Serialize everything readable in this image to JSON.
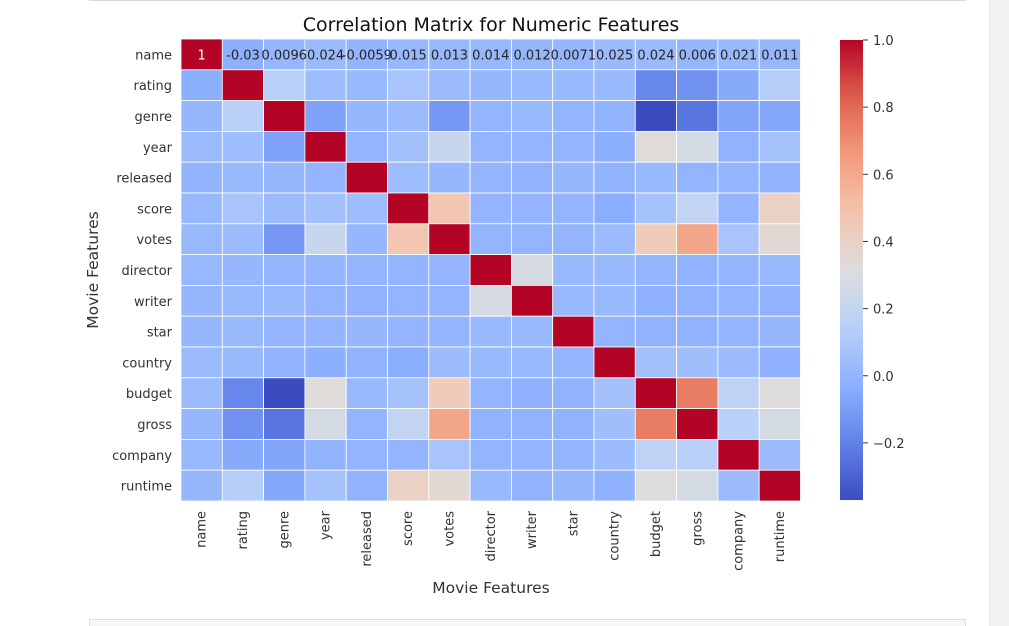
{
  "chart_data": {
    "type": "heatmap",
    "title": "Correlation Matrix for Numeric Features",
    "xlabel": "Movie Features",
    "ylabel": "Movie Features",
    "colormap": "coolwarm",
    "colorbar": {
      "min": -0.37,
      "max": 1.0,
      "ticks": [
        -0.2,
        0.0,
        0.2,
        0.4,
        0.6,
        0.8,
        1.0
      ],
      "tick_labels": [
        "−0.2",
        "0.0",
        "0.2",
        "0.4",
        "0.6",
        "0.8",
        "1.0"
      ],
      "placement": "right"
    },
    "categories": [
      "name",
      "rating",
      "genre",
      "year",
      "released",
      "score",
      "votes",
      "director",
      "writer",
      "star",
      "country",
      "budget",
      "gross",
      "company",
      "runtime"
    ],
    "annotations_row": 0,
    "annotations": [
      "1",
      "-0.03",
      "0.0096",
      "0.024",
      "-0.0059",
      "0.015",
      "0.013",
      "0.014",
      "0.012",
      "0.0071",
      "0.025",
      "0.024",
      "0.006",
      "0.021",
      "0.011"
    ],
    "values": [
      [
        1,
        -0.03,
        0.0096,
        0.024,
        -0.0059,
        0.015,
        0.013,
        0.014,
        0.012,
        0.0071,
        0.025,
        0.024,
        0.006,
        0.021,
        0.011
      ],
      [
        -0.03,
        1,
        0.15,
        0.04,
        0.02,
        0.08,
        0.03,
        0.01,
        0.02,
        0.02,
        0.02,
        -0.18,
        -0.14,
        -0.05,
        0.13
      ],
      [
        0.0096,
        0.15,
        1,
        -0.08,
        0.01,
        0.03,
        -0.12,
        0.0,
        0.02,
        0.0,
        -0.01,
        -0.37,
        -0.24,
        -0.07,
        -0.06
      ],
      [
        0.024,
        0.04,
        -0.08,
        1,
        0.0,
        0.06,
        0.22,
        0.0,
        0.0,
        0.0,
        -0.03,
        0.33,
        0.27,
        -0.01,
        0.07
      ],
      [
        -0.0059,
        0.02,
        0.01,
        0.0,
        1,
        0.04,
        0.01,
        0.0,
        -0.01,
        0.01,
        -0.01,
        0.02,
        0.0,
        0.0,
        -0.01
      ],
      [
        0.015,
        0.08,
        0.03,
        0.06,
        0.04,
        1,
        0.47,
        0.0,
        0.0,
        0.0,
        -0.04,
        0.07,
        0.19,
        0.0,
        0.4
      ],
      [
        0.013,
        0.03,
        -0.12,
        0.22,
        0.01,
        0.47,
        1,
        0.0,
        0.0,
        0.0,
        0.03,
        0.44,
        0.61,
        0.08,
        0.35
      ],
      [
        0.014,
        0.01,
        0.0,
        0.0,
        0.0,
        0.0,
        0.0,
        1,
        0.28,
        0.02,
        0.02,
        0.0,
        -0.01,
        0.0,
        0.02
      ],
      [
        0.012,
        0.02,
        0.02,
        0.0,
        -0.01,
        0.0,
        0.0,
        0.28,
        1,
        0.02,
        0.02,
        -0.02,
        -0.01,
        0.0,
        -0.01
      ],
      [
        0.0071,
        0.02,
        0.0,
        0.0,
        0.01,
        0.0,
        0.0,
        0.02,
        0.02,
        1,
        0.0,
        -0.01,
        -0.01,
        0.0,
        0.01
      ],
      [
        0.025,
        0.02,
        -0.01,
        -0.03,
        -0.01,
        -0.04,
        0.03,
        0.02,
        0.02,
        0.0,
        1,
        0.06,
        0.05,
        0.03,
        -0.02
      ],
      [
        0.024,
        -0.18,
        -0.37,
        0.33,
        0.02,
        0.07,
        0.44,
        0.0,
        -0.02,
        -0.01,
        0.06,
        1,
        0.74,
        0.17,
        0.32
      ],
      [
        0.006,
        -0.14,
        -0.24,
        0.27,
        0.0,
        0.19,
        0.61,
        -0.01,
        -0.01,
        -0.01,
        0.05,
        0.74,
        1,
        0.15,
        0.27
      ],
      [
        0.021,
        -0.05,
        -0.07,
        -0.01,
        0.0,
        0.0,
        0.08,
        0.0,
        0.0,
        0.0,
        0.03,
        0.17,
        0.15,
        1,
        0.03
      ],
      [
        0.011,
        0.13,
        -0.06,
        0.07,
        -0.01,
        0.4,
        0.35,
        0.02,
        -0.01,
        0.01,
        -0.02,
        0.32,
        0.27,
        0.03,
        1
      ]
    ]
  }
}
